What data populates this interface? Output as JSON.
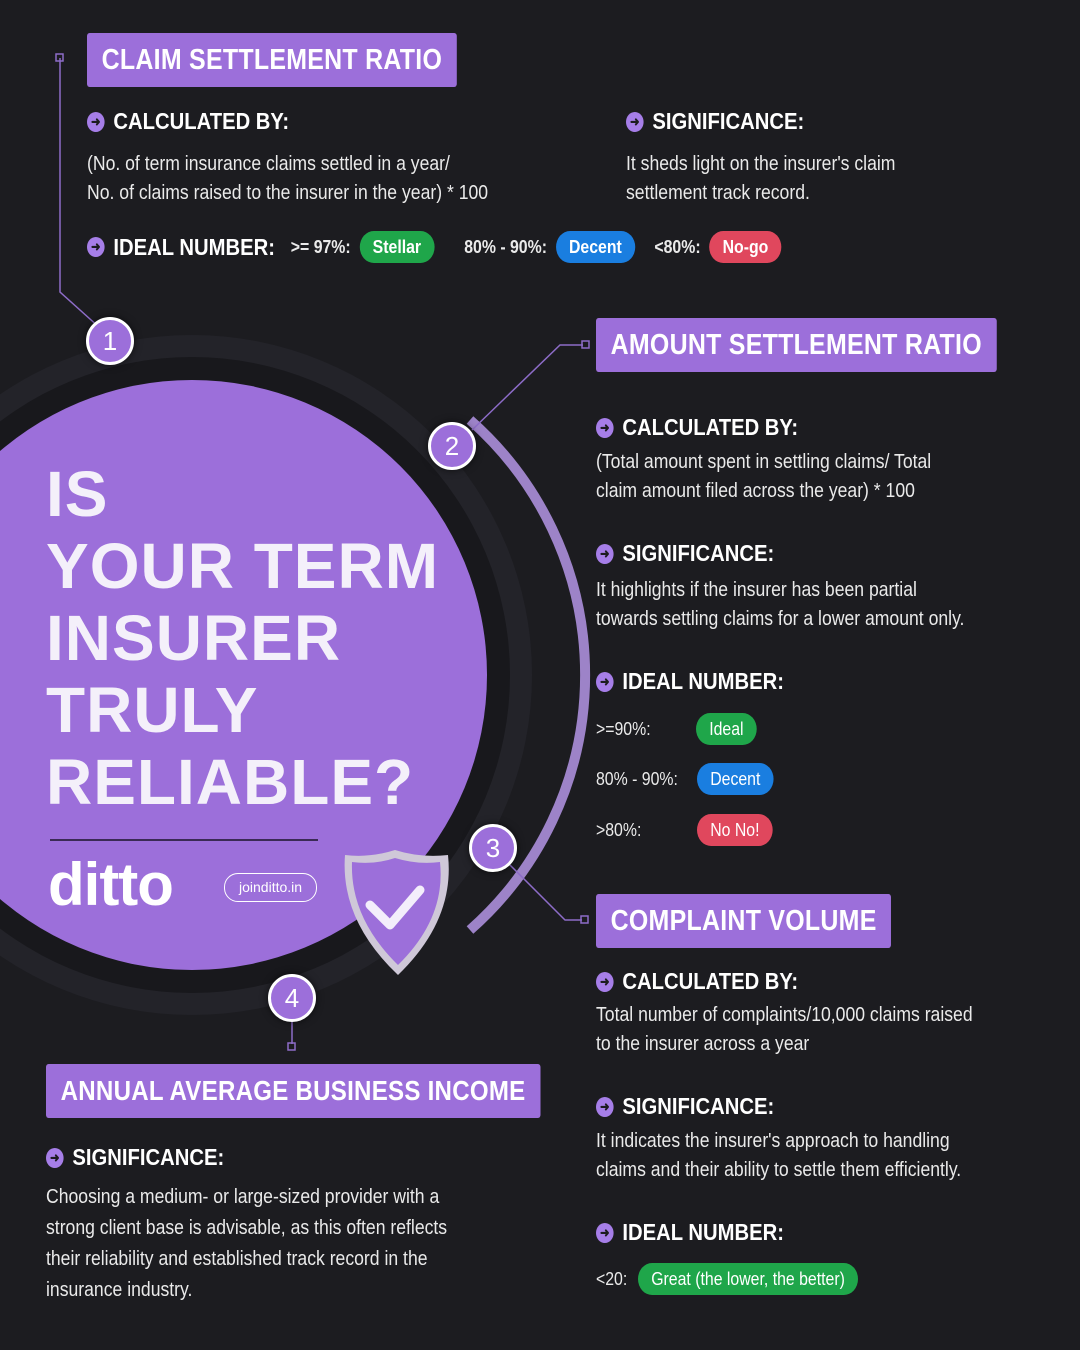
{
  "colors": {
    "background": "#1c1c20",
    "purple": "#9c6fda",
    "green": "#1fa64a",
    "blue": "#1a7ee0",
    "red": "#e0475d"
  },
  "hero": {
    "lines": [
      "IS",
      "YOUR TERM",
      "INSURER",
      "TRULY",
      "RELIABLE?"
    ],
    "brand": "ditto",
    "url": "joinditto.in",
    "icon": "shield-check-icon"
  },
  "numbers": [
    "1",
    "2",
    "3",
    "4"
  ],
  "csr": {
    "title": "CLAIM SETTLEMENT RATIO",
    "calc_head": "CALCULATED BY:",
    "calc_lines": [
      "(No. of term insurance claims settled in a year/",
      "No. of claims raised to the insurer in the year) * 100"
    ],
    "sig_head": "SIGNIFICANCE:",
    "sig_lines": [
      "It sheds light on the insurer's claim",
      "settlement track record."
    ],
    "ideal_head": "IDEAL NUMBER:",
    "ideal": [
      {
        "range": ">= 97%:",
        "label": "Stellar"
      },
      {
        "range": "80% - 90%:",
        "label": "Decent"
      },
      {
        "range": "<80%:",
        "label": "No-go"
      }
    ]
  },
  "asr": {
    "title": "AMOUNT SETTLEMENT RATIO",
    "calc_head": "CALCULATED BY:",
    "calc_lines": [
      "(Total amount spent in settling claims/ Total",
      "claim amount filed across the year) * 100"
    ],
    "sig_head": "SIGNIFICANCE:",
    "sig_lines": [
      "It highlights if the insurer has been partial",
      "towards settling claims for a lower amount only."
    ],
    "ideal_head": "IDEAL NUMBER:",
    "ideal": [
      {
        "range": ">=90%:",
        "label": "Ideal"
      },
      {
        "range": "80% - 90%:",
        "label": "Decent"
      },
      {
        "range": ">80%:",
        "label": "No No!"
      }
    ]
  },
  "cv": {
    "title": "COMPLAINT VOLUME",
    "calc_head": "CALCULATED BY:",
    "calc_lines": [
      "Total number of complaints/10,000 claims raised",
      "to the insurer across a year"
    ],
    "sig_head": "SIGNIFICANCE:",
    "sig_lines": [
      "It indicates the insurer's approach to handling",
      "claims and their ability to settle them efficiently."
    ],
    "ideal_head": "IDEAL NUMBER:",
    "ideal": [
      {
        "range": "<20:",
        "label": "Great (the lower, the better)"
      }
    ]
  },
  "aabi": {
    "title": "ANNUAL AVERAGE BUSINESS INCOME",
    "sig_head": "SIGNIFICANCE:",
    "sig_lines": [
      "Choosing a medium- or large-sized provider with a",
      "strong client base is advisable, as this often reflects",
      "their reliability and established track record in the",
      "insurance industry."
    ]
  }
}
